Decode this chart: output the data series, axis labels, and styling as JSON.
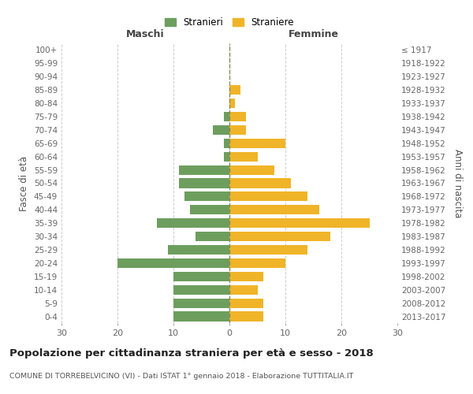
{
  "age_groups": [
    "0-4",
    "5-9",
    "10-14",
    "15-19",
    "20-24",
    "25-29",
    "30-34",
    "35-39",
    "40-44",
    "45-49",
    "50-54",
    "55-59",
    "60-64",
    "65-69",
    "70-74",
    "75-79",
    "80-84",
    "85-89",
    "90-94",
    "95-99",
    "100+"
  ],
  "birth_years": [
    "2013-2017",
    "2008-2012",
    "2003-2007",
    "1998-2002",
    "1993-1997",
    "1988-1992",
    "1983-1987",
    "1978-1982",
    "1973-1977",
    "1968-1972",
    "1963-1967",
    "1958-1962",
    "1953-1957",
    "1948-1952",
    "1943-1947",
    "1938-1942",
    "1933-1937",
    "1928-1932",
    "1923-1927",
    "1918-1922",
    "≤ 1917"
  ],
  "maschi": [
    10,
    10,
    10,
    10,
    20,
    11,
    6,
    13,
    7,
    8,
    9,
    9,
    1,
    1,
    3,
    1,
    0,
    0,
    0,
    0,
    0
  ],
  "femmine": [
    6,
    6,
    5,
    6,
    10,
    14,
    18,
    25,
    16,
    14,
    11,
    8,
    5,
    10,
    3,
    3,
    1,
    2,
    0,
    0,
    0
  ],
  "maschi_color": "#6d9e5e",
  "femmine_color": "#f0b429",
  "background_color": "#ffffff",
  "title": "Popolazione per cittadinanza straniera per età e sesso - 2018",
  "subtitle": "COMUNE DI TORREBELVICINO (VI) - Dati ISTAT 1° gennaio 2018 - Elaborazione TUTTITALIA.IT",
  "ylabel_left": "Fasce di età",
  "ylabel_right": "Anni di nascita",
  "xlabel_maschi": "Maschi",
  "xlabel_femmine": "Femmine",
  "legend_maschi": "Stranieri",
  "legend_femmine": "Straniere",
  "xlim": 30,
  "grid_color": "#cccccc"
}
